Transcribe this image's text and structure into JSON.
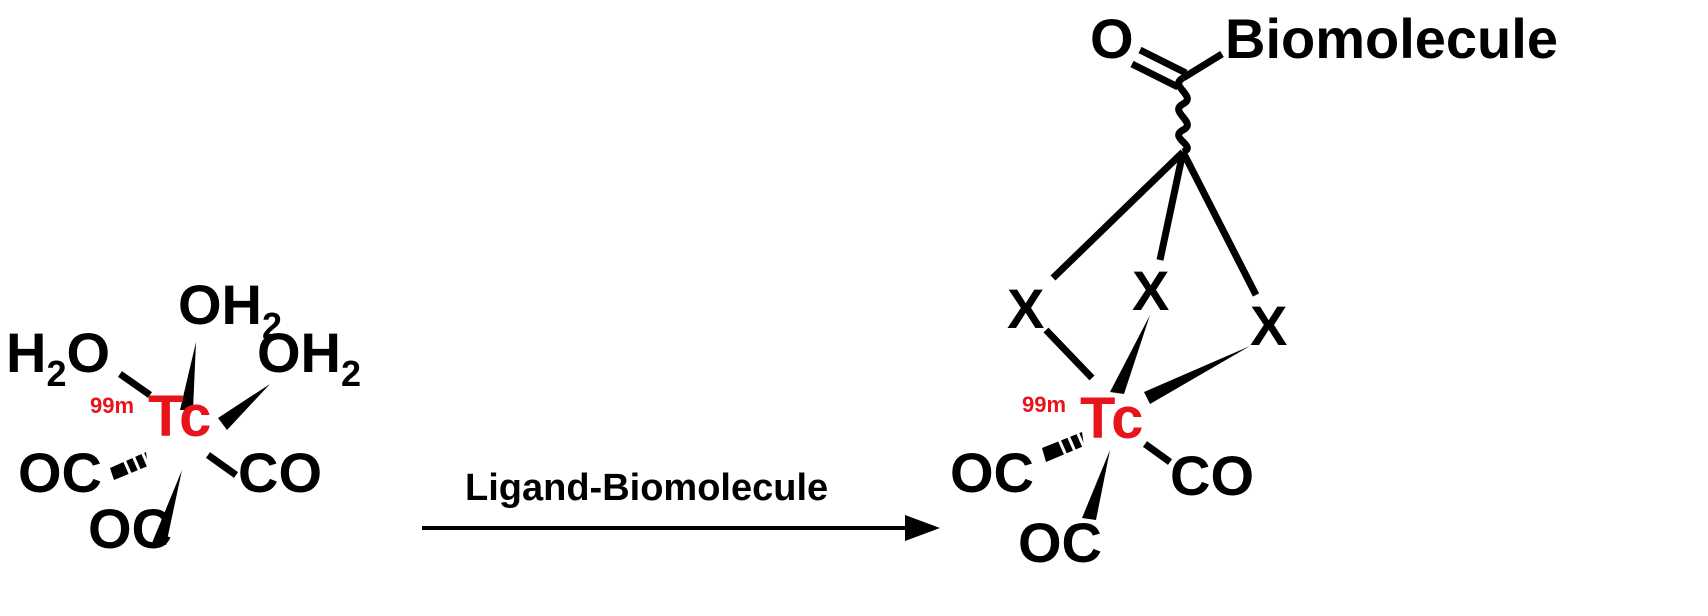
{
  "colors": {
    "metal": "#e8141b",
    "ink": "#000000",
    "background": "#ffffff"
  },
  "reactant": {
    "isotope": "99m",
    "metal": "Tc",
    "ligand_h2o_left": "H",
    "ligand_h2o_left_sub": "2",
    "ligand_h2o_left_o": "O",
    "ligand_oh2_top": "OH",
    "ligand_oh2_top_sub": "2",
    "ligand_oh2_right": "OH",
    "ligand_oh2_right_sub": "2",
    "carbonyl_left": "OC",
    "carbonyl_right": "CO",
    "carbonyl_bottom": "OC"
  },
  "arrow": {
    "label": "Ligand-Biomolecule"
  },
  "product": {
    "isotope": "99m",
    "metal": "Tc",
    "donor_left": "X",
    "donor_middle": "X",
    "donor_right": "X",
    "carbonyl_left": "OC",
    "carbonyl_right": "CO",
    "carbonyl_bottom": "OC",
    "carbonyl_oxygen": "O",
    "biomolecule": "Biomolecule"
  }
}
